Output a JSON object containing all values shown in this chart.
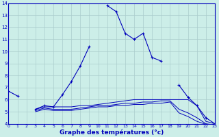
{
  "xlabel": "Graphe des températures (°c)",
  "bg_color": "#cceee8",
  "grid_color": "#aacccc",
  "line_color": "#0000bb",
  "hours": [
    0,
    1,
    2,
    3,
    4,
    5,
    6,
    7,
    8,
    9,
    10,
    11,
    12,
    13,
    14,
    15,
    16,
    17,
    18,
    19,
    20,
    21,
    22,
    23
  ],
  "temp_main": [
    6.7,
    6.3,
    null,
    5.2,
    5.5,
    5.4,
    6.4,
    7.5,
    8.8,
    10.4,
    null,
    13.8,
    13.3,
    11.5,
    11.0,
    11.5,
    9.5,
    9.2,
    null,
    7.2,
    6.2,
    5.5,
    4.5,
    4.0
  ],
  "temp_line2": [
    null,
    null,
    null,
    5.2,
    5.4,
    5.4,
    5.4,
    5.4,
    5.5,
    5.5,
    5.6,
    5.7,
    5.8,
    5.9,
    6.0,
    6.0,
    6.0,
    6.0,
    6.0,
    6.0,
    6.0,
    5.5,
    4.2,
    4.0
  ],
  "temp_line3": [
    null,
    null,
    null,
    5.1,
    5.3,
    5.2,
    5.2,
    5.2,
    5.3,
    5.4,
    5.5,
    5.5,
    5.6,
    5.7,
    5.7,
    5.8,
    5.8,
    5.9,
    5.9,
    5.2,
    4.9,
    4.5,
    4.0,
    3.9
  ],
  "temp_line4": [
    null,
    null,
    null,
    5.0,
    5.2,
    5.1,
    5.1,
    5.1,
    5.2,
    5.3,
    5.4,
    5.4,
    5.5,
    5.5,
    5.6,
    5.6,
    5.7,
    5.7,
    5.8,
    4.9,
    4.6,
    4.2,
    3.95,
    3.85
  ],
  "ylim": [
    4,
    14
  ],
  "xlim": [
    0,
    23
  ],
  "yticks": [
    4,
    5,
    6,
    7,
    8,
    9,
    10,
    11,
    12,
    13,
    14
  ],
  "xticks": [
    0,
    1,
    2,
    3,
    4,
    5,
    6,
    7,
    8,
    9,
    10,
    11,
    12,
    13,
    14,
    15,
    16,
    17,
    18,
    19,
    20,
    21,
    22,
    23
  ]
}
